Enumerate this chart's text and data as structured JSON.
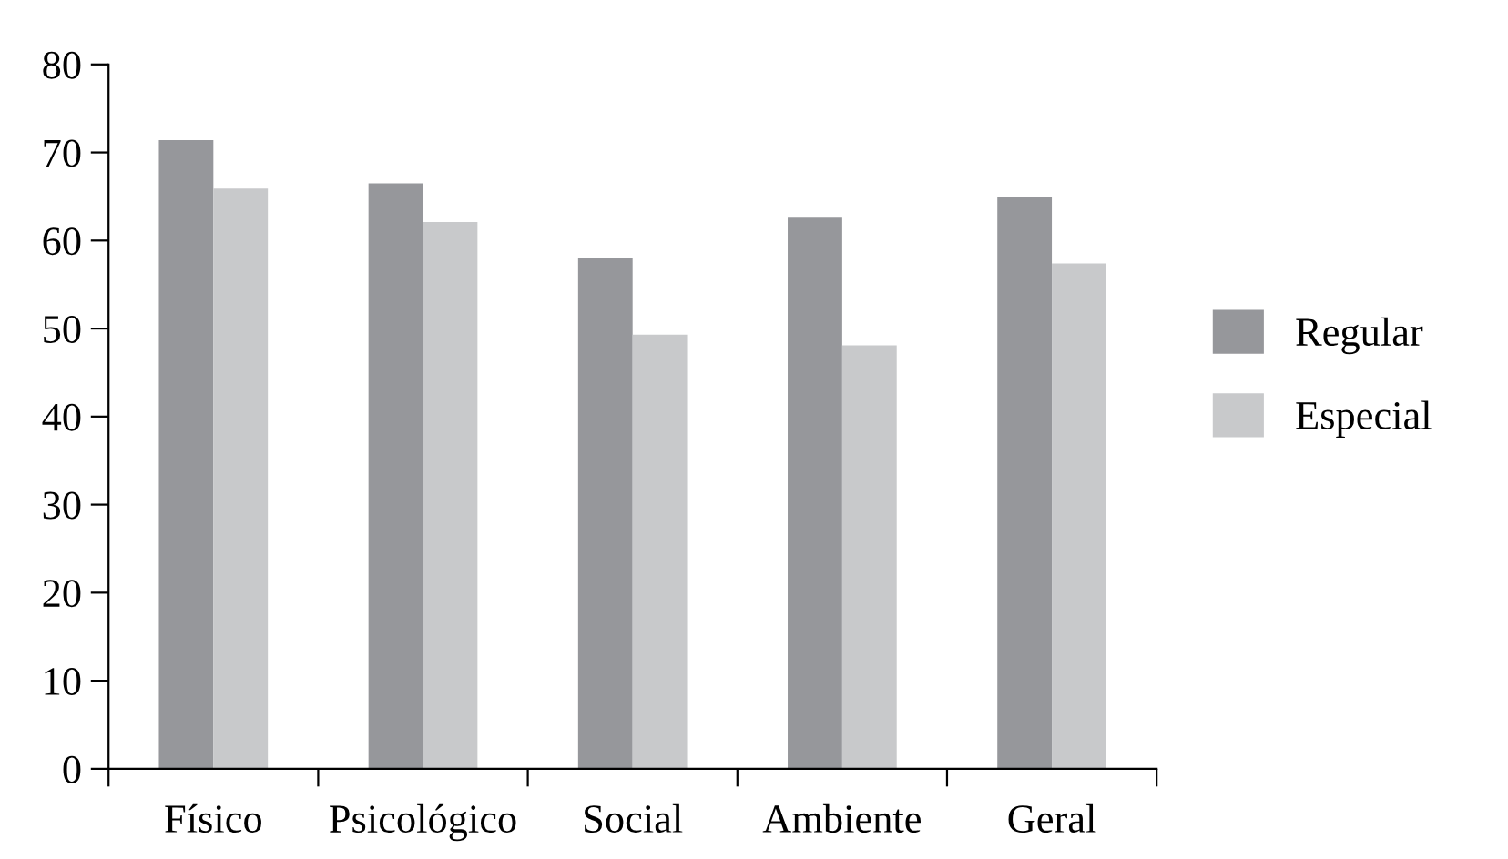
{
  "chart_data": {
    "type": "bar",
    "categories": [
      "Físico",
      "Psicológico",
      "Social",
      "Ambiente",
      "Geral"
    ],
    "series": [
      {
        "name": "Regular",
        "color": "#96979b",
        "values": [
          71.4,
          66.5,
          58.0,
          62.6,
          65.0
        ]
      },
      {
        "name": "Especial",
        "color": "#c8c9cb",
        "values": [
          65.9,
          62.1,
          49.3,
          48.1,
          57.4
        ]
      }
    ],
    "ylim": [
      0,
      80
    ],
    "yticks": [
      0,
      10,
      20,
      30,
      40,
      50,
      60,
      70,
      80
    ],
    "grid": false,
    "legend": "right"
  }
}
